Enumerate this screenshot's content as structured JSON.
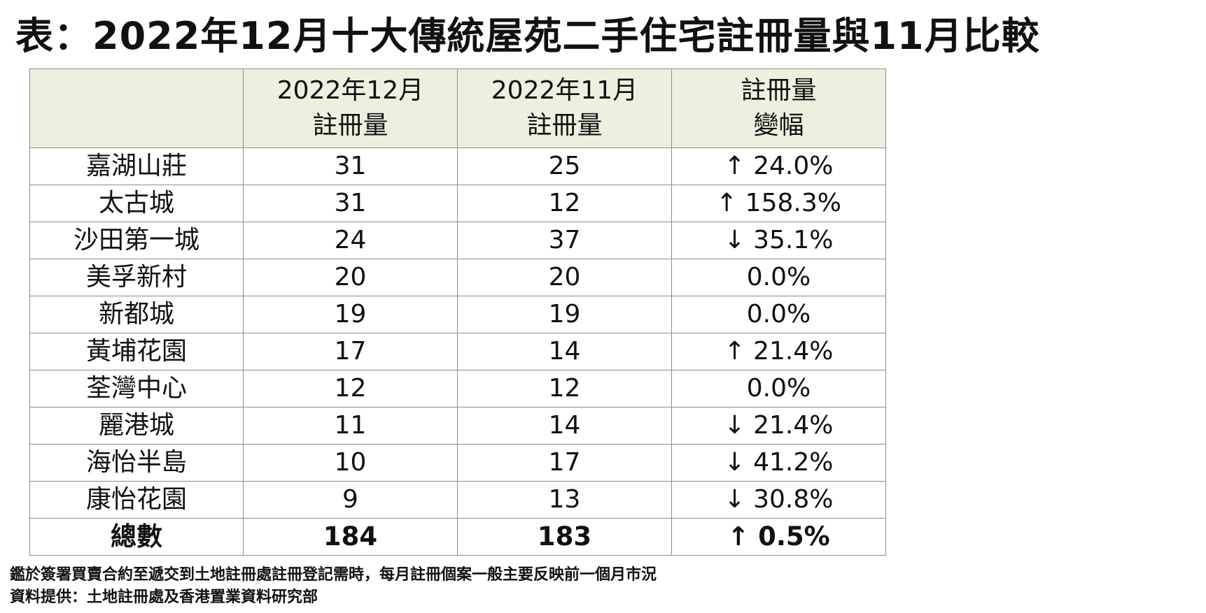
{
  "title": "表：2022年12月十大傳統屋苑二手住宅註冊量與11月比較",
  "colors": {
    "header_bg": "#ebf1de",
    "up": "#1f1fe6",
    "down": "#e61e1e",
    "border": "#8c8c8c"
  },
  "table": {
    "headers": [
      {
        "line1": "",
        "line2": ""
      },
      {
        "line1": "2022年12月",
        "line2": "註冊量"
      },
      {
        "line1": "2022年11月",
        "line2": "註冊量"
      },
      {
        "line1": "註冊量",
        "line2": "變幅"
      }
    ],
    "rows": [
      {
        "estate": "嘉湖山莊",
        "dec": "31",
        "nov": "25",
        "change": "↑ 24.0%",
        "direction": "up"
      },
      {
        "estate": "太古城",
        "dec": "31",
        "nov": "12",
        "change": "↑ 158.3%",
        "direction": "up"
      },
      {
        "estate": "沙田第一城",
        "dec": "24",
        "nov": "37",
        "change": "↓ 35.1%",
        "direction": "down"
      },
      {
        "estate": "美孚新村",
        "dec": "20",
        "nov": "20",
        "change": "0.0%",
        "direction": "flat"
      },
      {
        "estate": "新都城",
        "dec": "19",
        "nov": "19",
        "change": "0.0%",
        "direction": "flat"
      },
      {
        "estate": "黃埔花園",
        "dec": "17",
        "nov": "14",
        "change": "↑ 21.4%",
        "direction": "up"
      },
      {
        "estate": "荃灣中心",
        "dec": "12",
        "nov": "12",
        "change": "0.0%",
        "direction": "flat"
      },
      {
        "estate": "麗港城",
        "dec": "11",
        "nov": "14",
        "change": "↓ 21.4%",
        "direction": "down"
      },
      {
        "estate": "海怡半島",
        "dec": "10",
        "nov": "17",
        "change": "↓ 41.2%",
        "direction": "down"
      },
      {
        "estate": "康怡花園",
        "dec": "9",
        "nov": "13",
        "change": "↓ 30.8%",
        "direction": "down"
      }
    ],
    "total": {
      "estate": "總數",
      "dec": "184",
      "nov": "183",
      "change": "↑ 0.5%",
      "direction": "up"
    }
  },
  "footnotes": [
    "鑑於簽署買賣合約至遞交到土地註冊處註冊登記需時，每月註冊個案一般主要反映前一個月市況",
    "資料提供：土地註冊處及香港置業資料研究部"
  ]
}
